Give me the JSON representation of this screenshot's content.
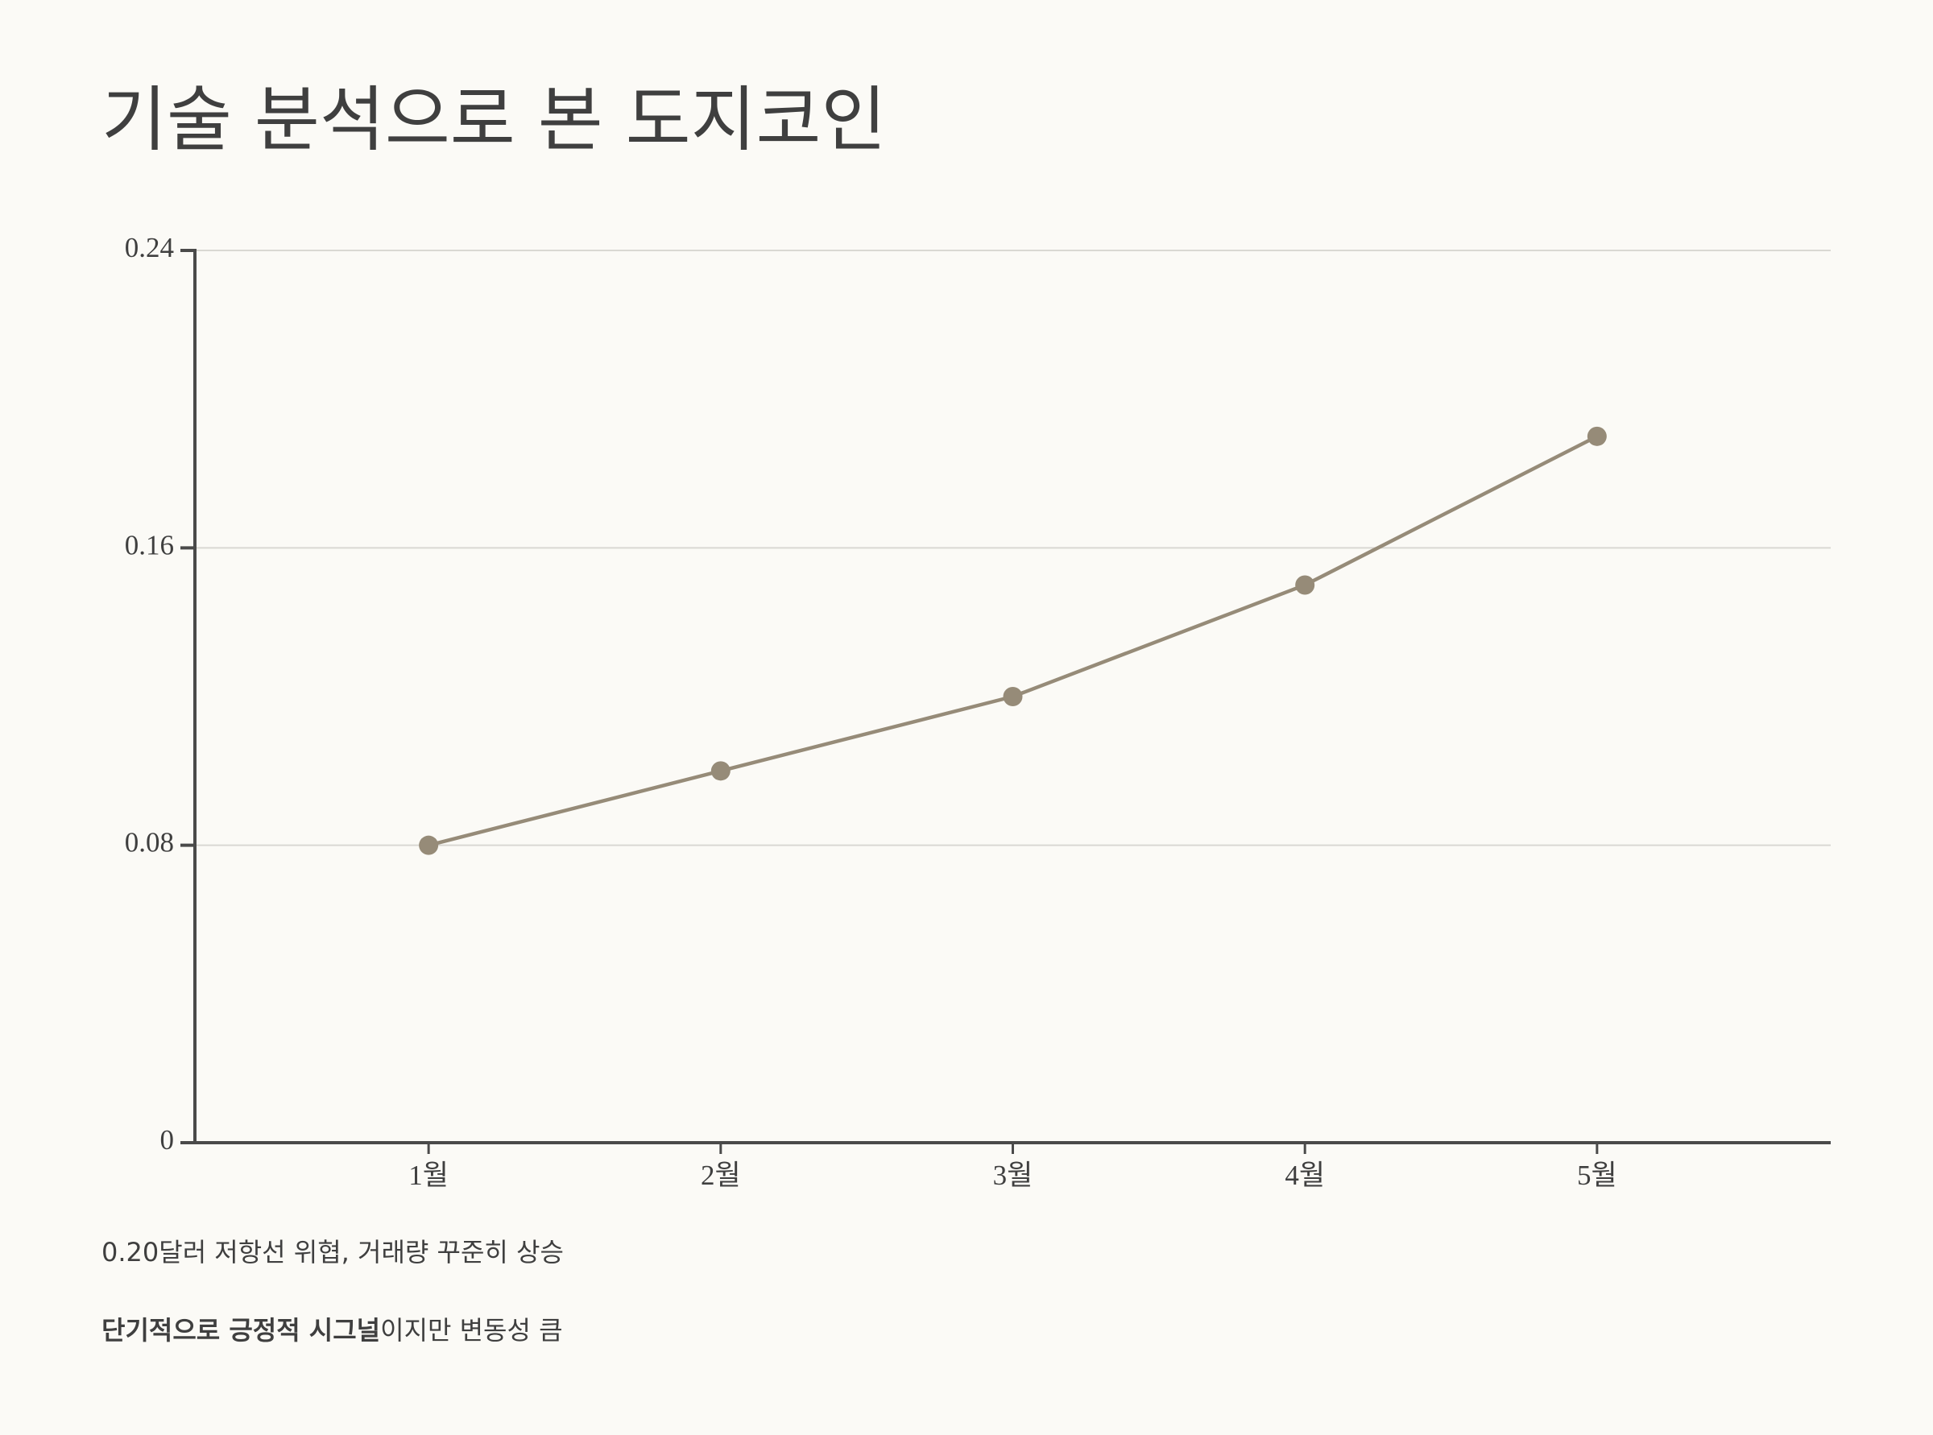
{
  "chart_data": {
    "type": "line",
    "title": "기술 분석으로 본 도지코인",
    "categories": [
      "1월",
      "2월",
      "3월",
      "4월",
      "5월"
    ],
    "series": [
      {
        "name": "도지코인",
        "color": "#968b78",
        "values": [
          0.08,
          0.1,
          0.12,
          0.15,
          0.19
        ]
      }
    ],
    "ylim": [
      0,
      0.24
    ],
    "yticks": [
      0,
      0.08,
      0.16,
      0.24
    ],
    "grid": true,
    "annotations": [
      {
        "text": "0.20달러 저항선 위협, 거래량 꾸준히 상승"
      },
      {
        "bold": "단기적으로 긍정적 시그널",
        "text": "이지만 변동성 큼"
      }
    ]
  }
}
